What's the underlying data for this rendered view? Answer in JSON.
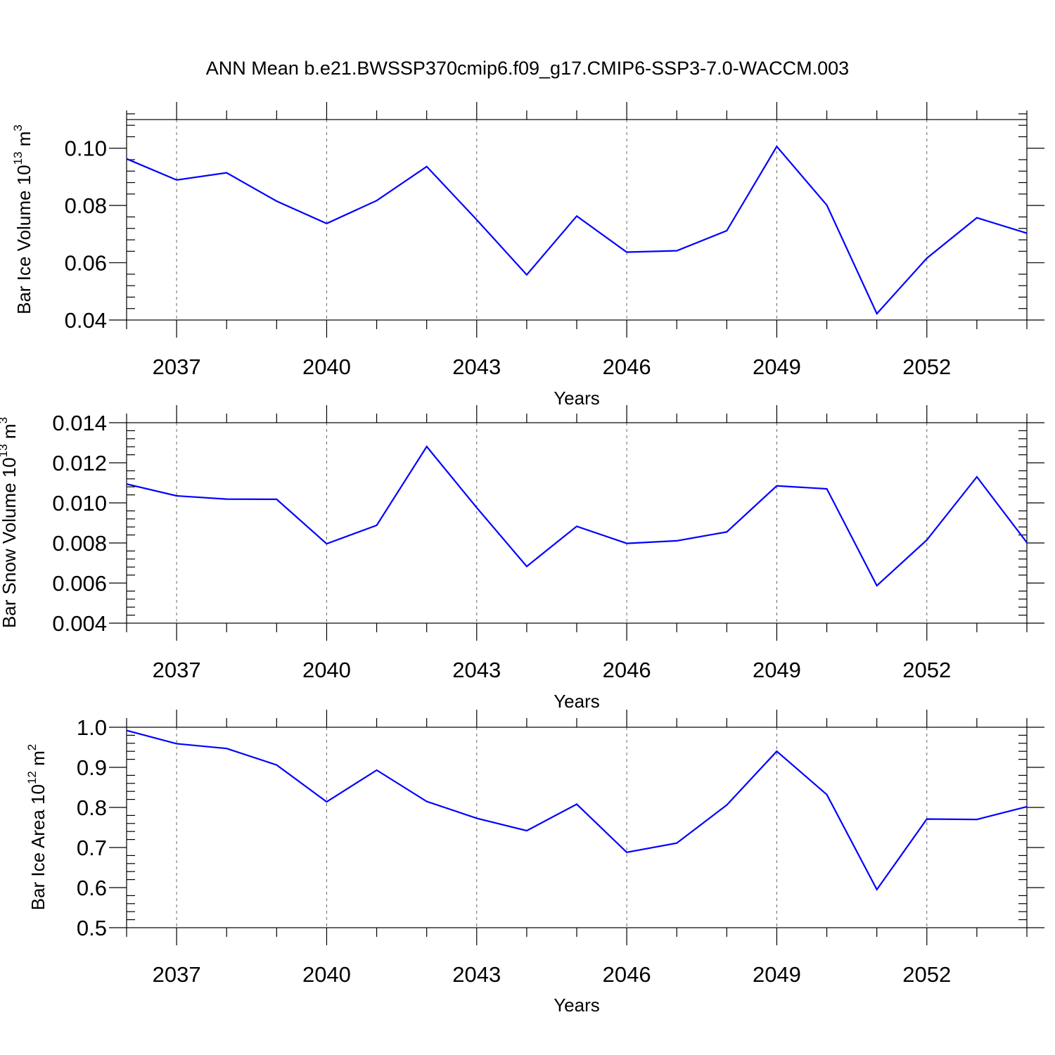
{
  "title": "ANN Mean b.e21.BWSSP370cmip6.f09_g17.CMIP6-SSP3-7.0-WACCM.003",
  "colors": {
    "series": "#0000ff",
    "axes": "#000000",
    "grid": "#666666"
  },
  "chart_data": [
    {
      "type": "line",
      "ylabel_main": "Bar Ice Volume 10",
      "ylabel_exp": "13",
      "ylabel_unit": " m",
      "ylabel_unit_exp": "3",
      "xlabel": "Years",
      "xlim": [
        2036,
        2054
      ],
      "ylim": [
        0.04,
        0.11
      ],
      "yticks": [
        0.04,
        0.06,
        0.08,
        0.1
      ],
      "ytick_labels": [
        "0.04",
        "0.06",
        "0.08",
        "0.10"
      ],
      "xticks": [
        2037,
        2040,
        2043,
        2046,
        2049,
        2052
      ],
      "xtick_labels": [
        "2037",
        "2040",
        "2043",
        "2046",
        "2049",
        "2052"
      ],
      "grid": "dashed vertical at labeled years",
      "x": [
        2036,
        2037,
        2038,
        2039,
        2040,
        2041,
        2042,
        2043,
        2044,
        2045,
        2046,
        2047,
        2048,
        2049,
        2050,
        2051,
        2052,
        2053,
        2054
      ],
      "values": [
        0.0963,
        0.0889,
        0.0914,
        0.0815,
        0.0737,
        0.0817,
        0.0936,
        0.075,
        0.0558,
        0.0763,
        0.0637,
        0.0642,
        0.0712,
        0.1006,
        0.0801,
        0.0422,
        0.0616,
        0.0757,
        0.0703
      ]
    },
    {
      "type": "line",
      "ylabel_main": "Bar Snow Volume 10",
      "ylabel_exp": "13",
      "ylabel_unit": " m",
      "ylabel_unit_exp": "3",
      "xlabel": "Years",
      "xlim": [
        2036,
        2054
      ],
      "ylim": [
        0.004,
        0.014
      ],
      "yticks": [
        0.004,
        0.006,
        0.008,
        0.01,
        0.012,
        0.014
      ],
      "ytick_labels": [
        "0.004",
        "0.006",
        "0.008",
        "0.010",
        "0.012",
        "0.014"
      ],
      "xticks": [
        2037,
        2040,
        2043,
        2046,
        2049,
        2052
      ],
      "xtick_labels": [
        "2037",
        "2040",
        "2043",
        "2046",
        "2049",
        "2052"
      ],
      "grid": "dashed vertical at labeled years",
      "x": [
        2036,
        2037,
        2038,
        2039,
        2040,
        2041,
        2042,
        2043,
        2044,
        2045,
        2046,
        2047,
        2048,
        2049,
        2050,
        2051,
        2052,
        2053,
        2054
      ],
      "values": [
        0.01094,
        0.01035,
        0.01019,
        0.01018,
        0.00796,
        0.00888,
        0.01281,
        0.00976,
        0.00683,
        0.00883,
        0.00798,
        0.00811,
        0.00855,
        0.01085,
        0.0107,
        0.00587,
        0.00815,
        0.0113,
        0.00802
      ]
    },
    {
      "type": "line",
      "ylabel_main": "Bar Ice Area 10",
      "ylabel_exp": "12",
      "ylabel_unit": " m",
      "ylabel_unit_exp": "2",
      "xlabel": "Years",
      "xlim": [
        2036,
        2054
      ],
      "ylim": [
        0.5,
        1.0
      ],
      "yticks": [
        0.5,
        0.6,
        0.7,
        0.8,
        0.9,
        1.0
      ],
      "ytick_labels": [
        "0.5",
        "0.6",
        "0.7",
        "0.8",
        "0.9",
        "1.0"
      ],
      "xticks": [
        2037,
        2040,
        2043,
        2046,
        2049,
        2052
      ],
      "xtick_labels": [
        "2037",
        "2040",
        "2043",
        "2046",
        "2049",
        "2052"
      ],
      "grid": "dashed vertical at labeled years",
      "x": [
        2036,
        2037,
        2038,
        2039,
        2040,
        2041,
        2042,
        2043,
        2044,
        2045,
        2046,
        2047,
        2048,
        2049,
        2050,
        2051,
        2052,
        2053,
        2054
      ],
      "values": [
        0.992,
        0.959,
        0.947,
        0.906,
        0.814,
        0.893,
        0.815,
        0.773,
        0.742,
        0.808,
        0.688,
        0.711,
        0.806,
        0.94,
        0.832,
        0.595,
        0.771,
        0.77,
        0.802
      ]
    }
  ]
}
